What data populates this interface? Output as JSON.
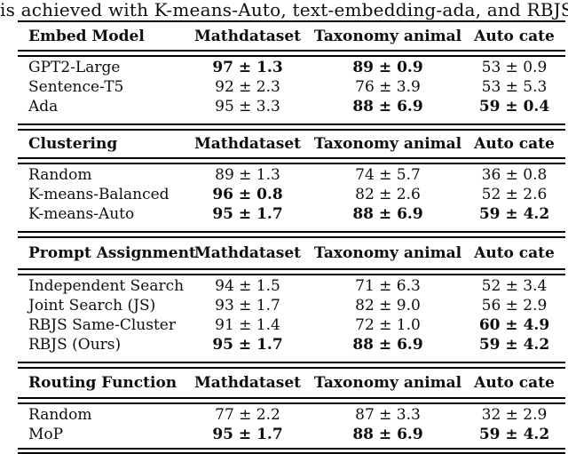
{
  "caption": "is achieved with K-means-Auto, text-embedding-ada, and RBJS.",
  "column_headers": [
    "Mathdataset",
    "Taxonomy animal",
    "Auto cate"
  ],
  "colors": {
    "text": "#0d0d0d",
    "rule": "#000000",
    "background": "#ffffff"
  },
  "sections": [
    {
      "header": "Embed Model",
      "rows": [
        {
          "label": "GPT2-Large",
          "values": [
            "97 ± 1.3",
            "89 ± 0.9",
            "53 ± 0.9"
          ],
          "bold": [
            true,
            true,
            false
          ]
        },
        {
          "label": "Sentence-T5",
          "values": [
            "92 ± 2.3",
            "76 ± 3.9",
            "53 ± 5.3"
          ],
          "bold": [
            false,
            false,
            false
          ]
        },
        {
          "label": "Ada",
          "values": [
            "95 ± 3.3",
            "88 ± 6.9",
            "59 ± 0.4"
          ],
          "bold": [
            false,
            true,
            true
          ]
        }
      ]
    },
    {
      "header": "Clustering",
      "rows": [
        {
          "label": "Random",
          "values": [
            "89 ± 1.3",
            "74 ± 5.7",
            "36 ± 0.8"
          ],
          "bold": [
            false,
            false,
            false
          ]
        },
        {
          "label": "K-means-Balanced",
          "values": [
            "96 ± 0.8",
            "82 ± 2.6",
            "52 ± 2.6"
          ],
          "bold": [
            true,
            false,
            false
          ]
        },
        {
          "label": "K-means-Auto",
          "values": [
            "95 ± 1.7",
            "88 ± 6.9",
            "59 ± 4.2"
          ],
          "bold": [
            true,
            true,
            true
          ]
        }
      ]
    },
    {
      "header": "Prompt Assignment",
      "rows": [
        {
          "label": "Independent Search",
          "values": [
            "94 ± 1.5",
            "71 ± 6.3",
            "52 ± 3.4"
          ],
          "bold": [
            false,
            false,
            false
          ]
        },
        {
          "label": "Joint Search (JS)",
          "values": [
            "93 ± 1.7",
            "82 ± 9.0",
            "56 ± 2.9"
          ],
          "bold": [
            false,
            false,
            false
          ]
        },
        {
          "label": "RBJS Same-Cluster",
          "values": [
            "91 ± 1.4",
            "72 ± 1.0",
            "60 ± 4.9"
          ],
          "bold": [
            false,
            false,
            true
          ]
        },
        {
          "label": "RBJS (Ours)",
          "values": [
            "95 ± 1.7",
            "88 ± 6.9",
            "59 ± 4.2"
          ],
          "bold": [
            true,
            true,
            true
          ]
        }
      ]
    },
    {
      "header": "Routing Function",
      "rows": [
        {
          "label": "Random",
          "values": [
            "77 ± 2.2",
            "87 ± 3.3",
            "32 ± 2.9"
          ],
          "bold": [
            false,
            false,
            false
          ]
        },
        {
          "label": "MoP",
          "values": [
            "95 ± 1.7",
            "88 ± 6.9",
            "59 ± 4.2"
          ],
          "bold": [
            true,
            true,
            true
          ]
        }
      ]
    }
  ]
}
